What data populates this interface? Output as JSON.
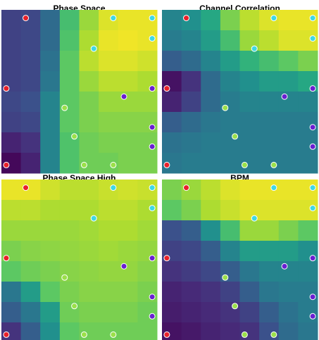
{
  "chart_data": [
    {
      "type": "heatmap",
      "title": "Phase Space",
      "xlim": [
        0,
        8
      ],
      "ylim": [
        0,
        8
      ],
      "z": [
        [
          0.2,
          0.22,
          0.35,
          0.7,
          0.85,
          0.95,
          0.97,
          0.97
        ],
        [
          0.2,
          0.22,
          0.35,
          0.72,
          0.88,
          0.97,
          0.98,
          0.97
        ],
        [
          0.2,
          0.22,
          0.38,
          0.75,
          0.9,
          0.95,
          0.95,
          0.93
        ],
        [
          0.2,
          0.22,
          0.4,
          0.75,
          0.85,
          0.9,
          0.9,
          0.88
        ],
        [
          0.22,
          0.25,
          0.45,
          0.75,
          0.8,
          0.85,
          0.85,
          0.85
        ],
        [
          0.2,
          0.22,
          0.45,
          0.75,
          0.8,
          0.82,
          0.82,
          0.82
        ],
        [
          0.1,
          0.15,
          0.45,
          0.72,
          0.78,
          0.8,
          0.8,
          0.8
        ],
        [
          0.02,
          0.1,
          0.45,
          0.72,
          0.78,
          0.78,
          0.8,
          0.8
        ]
      ],
      "points": {
        "x": [
          1.25,
          5.75,
          7.75,
          7.75,
          4.75,
          0.25,
          6.3,
          7.75,
          3.25,
          7.75,
          3.75,
          7.75,
          0.25,
          4.25,
          5.75
        ],
        "y": [
          0.4,
          0.4,
          0.4,
          1.4,
          1.9,
          3.85,
          4.25,
          3.85,
          4.8,
          5.75,
          6.2,
          6.7,
          7.6,
          7.6,
          7.6
        ],
        "colors": [
          "#e8212a",
          "#3fd8e4",
          "#3fd8e4",
          "#3fd8e4",
          "#3fd8e4",
          "#e8212a",
          "#6a1fd1",
          "#6a1fd1",
          "#9be04a",
          "#6a1fd1",
          "#9be04a",
          "#6a1fd1",
          "#e8212a",
          "#9be04a",
          "#9be04a"
        ]
      }
    },
    {
      "type": "heatmap",
      "title": "Channel Correlation",
      "xlim": [
        0,
        8
      ],
      "ylim": [
        0,
        8
      ],
      "z": [
        [
          0.45,
          0.5,
          0.6,
          0.8,
          0.9,
          0.95,
          0.97,
          0.97
        ],
        [
          0.42,
          0.45,
          0.55,
          0.7,
          0.85,
          0.9,
          0.95,
          0.95
        ],
        [
          0.3,
          0.35,
          0.45,
          0.55,
          0.65,
          0.7,
          0.75,
          0.8
        ],
        [
          0.05,
          0.15,
          0.35,
          0.45,
          0.5,
          0.55,
          0.55,
          0.6
        ],
        [
          0.1,
          0.2,
          0.35,
          0.42,
          0.45,
          0.45,
          0.45,
          0.45
        ],
        [
          0.3,
          0.35,
          0.4,
          0.42,
          0.42,
          0.42,
          0.42,
          0.42
        ],
        [
          0.38,
          0.4,
          0.42,
          0.42,
          0.42,
          0.42,
          0.42,
          0.42
        ],
        [
          0.4,
          0.42,
          0.42,
          0.42,
          0.42,
          0.42,
          0.42,
          0.42
        ]
      ],
      "points": {
        "x": [
          1.25,
          5.75,
          7.75,
          7.75,
          4.75,
          0.25,
          6.3,
          7.75,
          3.25,
          7.75,
          3.75,
          7.75,
          0.25,
          4.25,
          5.75
        ],
        "y": [
          0.4,
          0.4,
          0.4,
          1.4,
          1.9,
          3.85,
          4.25,
          3.85,
          4.8,
          5.75,
          6.2,
          6.7,
          7.6,
          7.6,
          7.6
        ],
        "colors": [
          "#e8212a",
          "#3fd8e4",
          "#3fd8e4",
          "#3fd8e4",
          "#3fd8e4",
          "#e8212a",
          "#6a1fd1",
          "#6a1fd1",
          "#9be04a",
          "#6a1fd1",
          "#9be04a",
          "#6a1fd1",
          "#e8212a",
          "#9be04a",
          "#9be04a"
        ]
      }
    },
    {
      "type": "heatmap",
      "title": "Phase Space High",
      "xlim": [
        0,
        8
      ],
      "ylim": [
        0,
        8
      ],
      "z": [
        [
          0.97,
          0.97,
          0.93,
          0.9,
          0.9,
          0.92,
          0.93,
          0.92
        ],
        [
          0.9,
          0.9,
          0.88,
          0.88,
          0.88,
          0.9,
          0.9,
          0.88
        ],
        [
          0.85,
          0.85,
          0.85,
          0.85,
          0.86,
          0.88,
          0.88,
          0.86
        ],
        [
          0.8,
          0.82,
          0.83,
          0.84,
          0.85,
          0.86,
          0.85,
          0.84
        ],
        [
          0.75,
          0.78,
          0.8,
          0.82,
          0.83,
          0.84,
          0.84,
          0.82
        ],
        [
          0.4,
          0.55,
          0.75,
          0.8,
          0.82,
          0.82,
          0.82,
          0.8
        ],
        [
          0.3,
          0.4,
          0.55,
          0.78,
          0.8,
          0.8,
          0.8,
          0.78
        ],
        [
          0.15,
          0.3,
          0.5,
          0.75,
          0.78,
          0.78,
          0.78,
          0.78
        ]
      ],
      "points": {
        "x": [
          1.25,
          5.75,
          7.75,
          7.75,
          4.75,
          0.25,
          6.3,
          7.75,
          3.25,
          7.75,
          3.75,
          7.75,
          0.25,
          4.25,
          5.75
        ],
        "y": [
          0.4,
          0.4,
          0.4,
          1.4,
          1.9,
          3.85,
          4.25,
          3.85,
          4.8,
          5.75,
          6.2,
          6.7,
          7.6,
          7.6,
          7.6
        ],
        "colors": [
          "#e8212a",
          "#3fd8e4",
          "#3fd8e4",
          "#3fd8e4",
          "#3fd8e4",
          "#e8212a",
          "#6a1fd1",
          "#6a1fd1",
          "#9be04a",
          "#6a1fd1",
          "#9be04a",
          "#6a1fd1",
          "#e8212a",
          "#9be04a",
          "#9be04a"
        ]
      }
    },
    {
      "type": "heatmap",
      "title": "BPM",
      "xlim": [
        0,
        8
      ],
      "ylim": [
        0,
        8
      ],
      "z": [
        [
          0.8,
          0.85,
          0.9,
          0.95,
          0.97,
          0.97,
          0.97,
          0.97
        ],
        [
          0.75,
          0.8,
          0.88,
          0.92,
          0.95,
          0.95,
          0.95,
          0.95
        ],
        [
          0.25,
          0.3,
          0.5,
          0.7,
          0.85,
          0.85,
          0.8,
          0.75
        ],
        [
          0.2,
          0.22,
          0.3,
          0.45,
          0.55,
          0.55,
          0.55,
          0.5
        ],
        [
          0.15,
          0.18,
          0.22,
          0.3,
          0.4,
          0.45,
          0.45,
          0.45
        ],
        [
          0.1,
          0.12,
          0.15,
          0.2,
          0.3,
          0.4,
          0.42,
          0.42
        ],
        [
          0.08,
          0.1,
          0.12,
          0.15,
          0.2,
          0.3,
          0.38,
          0.42
        ],
        [
          0.05,
          0.07,
          0.1,
          0.12,
          0.15,
          0.25,
          0.35,
          0.4
        ]
      ],
      "points": {
        "x": [
          1.25,
          5.75,
          7.75,
          7.75,
          4.75,
          0.25,
          6.3,
          7.75,
          3.25,
          7.75,
          3.75,
          7.75,
          0.25,
          4.25,
          5.75
        ],
        "y": [
          0.4,
          0.4,
          0.4,
          1.4,
          1.9,
          3.85,
          4.25,
          3.85,
          4.8,
          5.75,
          6.2,
          6.7,
          7.6,
          7.6,
          7.6
        ],
        "colors": [
          "#e8212a",
          "#3fd8e4",
          "#3fd8e4",
          "#3fd8e4",
          "#3fd8e4",
          "#e8212a",
          "#6a1fd1",
          "#6a1fd1",
          "#9be04a",
          "#6a1fd1",
          "#9be04a",
          "#6a1fd1",
          "#e8212a",
          "#9be04a",
          "#9be04a"
        ]
      }
    }
  ]
}
